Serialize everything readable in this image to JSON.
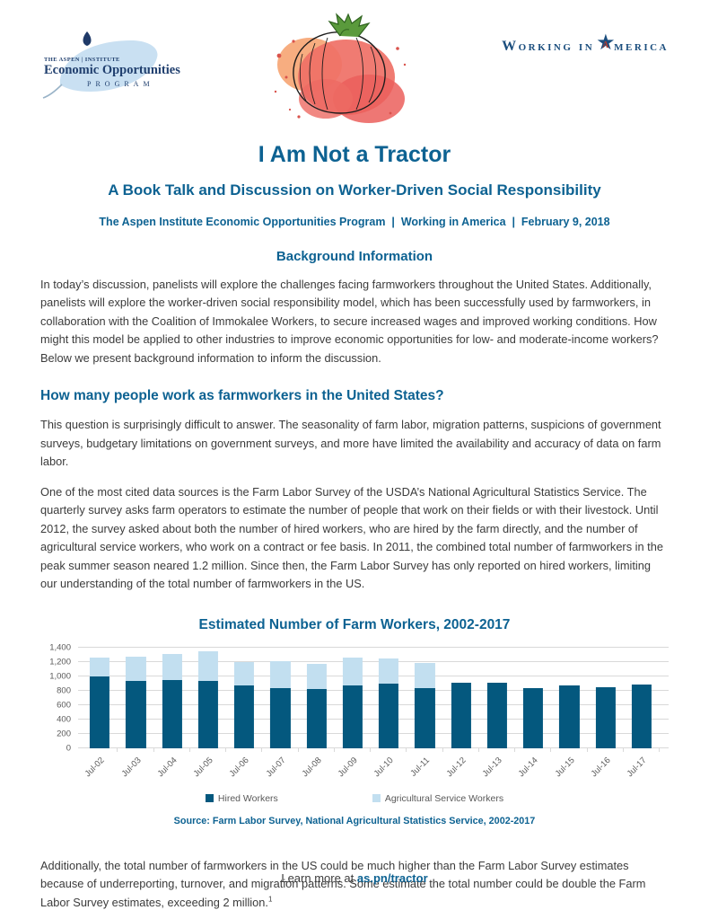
{
  "header": {
    "eop_logo": {
      "line1": "THE ASPEN | INSTITUTE",
      "line2": "Economic Opportunities",
      "line3": "PROGRAM"
    },
    "wia_logo": {
      "label_start": "Working in",
      "star_letter": "A",
      "label_end": "merica"
    }
  },
  "title": "I Am Not a Tractor",
  "subtitle": "A Book Talk and Discussion on Worker-Driven Social Responsibility",
  "byline": "The Aspen Institute Economic Opportunities Program  |  Working in America  |  February 9, 2018",
  "sections": {
    "background": {
      "heading": "Background Information",
      "paragraph": "In today’s discussion, panelists will explore the challenges facing farmworkers throughout the United States. Additionally, panelists will explore the worker-driven social responsibility model, which has been successfully used by farmworkers, in collaboration with the Coalition of Immokalee Workers, to secure increased wages and improved working conditions. How might this model be applied to other industries to improve economic opportunities for low- and moderate-income workers? Below we present background information to inform the discussion."
    },
    "farmworkers": {
      "heading": "How many people work as farmworkers in the United States?",
      "paragraph1": "This question is surprisingly difficult to answer. The seasonality of farm labor, migration patterns, suspicions of government surveys, budgetary limitations on government surveys, and more have limited the availability and accuracy of data on farm labor.",
      "paragraph2": "One of the most cited data sources is the Farm Labor Survey of the USDA’s National Agricultural Statistics Service. The quarterly survey asks farm operators to estimate the number of people that work on their fields or with their livestock. Until 2012, the survey asked about both the number of hired workers, who are hired by the farm directly, and the number of agricultural service workers, who work on a contract or fee basis. In 2011, the combined total number of farmworkers in the peak summer season neared 1.2 million. Since then, the Farm Labor Survey has only reported on hired workers, limiting our understanding of the total number of farmworkers in the US."
    },
    "after_chart": {
      "paragraph": "Additionally, the total number of farmworkers in the US could be much higher than the Farm Labor Survey estimates because of underreporting, turnover, and migration patterns. Some estimate the total number could be double the Farm Labor Survey estimates, exceeding 2 million.",
      "footnote_marker": "1"
    }
  },
  "chart_data": {
    "type": "bar",
    "stacked": true,
    "title": "Estimated Number of Farm Workers, 2002-2017",
    "categories": [
      "Jul-02",
      "Jul-03",
      "Jul-04",
      "Jul-05",
      "Jul-06",
      "Jul-07",
      "Jul-08",
      "Jul-09",
      "Jul-10",
      "Jul-11",
      "Jul-12",
      "Jul-13",
      "Jul-14",
      "Jul-15",
      "Jul-16",
      "Jul-17"
    ],
    "series": [
      {
        "name": "Hired Workers",
        "color": "#04587e",
        "values": [
          1000,
          935,
          950,
          930,
          865,
          830,
          815,
          865,
          890,
          835,
          910,
          910,
          835,
          870,
          840,
          880
        ]
      },
      {
        "name": "Agricultural Service Workers",
        "color": "#c2dff0",
        "values": [
          260,
          330,
          355,
          415,
          335,
          380,
          360,
          390,
          355,
          350,
          0,
          0,
          0,
          0,
          0,
          0
        ]
      }
    ],
    "ylim": [
      0,
      1400
    ],
    "yticks": [
      0,
      200,
      400,
      600,
      800,
      1000,
      1200,
      1400
    ],
    "ytick_labels": [
      "0",
      "200",
      "400",
      "600",
      "800",
      "1,000",
      "1,200",
      "1,400"
    ],
    "grid": true,
    "legend_position": "bottom",
    "source": "Source: Farm Labor Survey, National Agricultural Statistics Service, 2002-2017"
  },
  "footer": {
    "text": "Learn more at ",
    "link": "as.pn/tractor"
  },
  "colors": {
    "brand_blue": "#0d6292",
    "bar_dark": "#04587e",
    "bar_light": "#c2dff0",
    "body_text": "#3b3b3b",
    "axis_gray": "#595959"
  }
}
